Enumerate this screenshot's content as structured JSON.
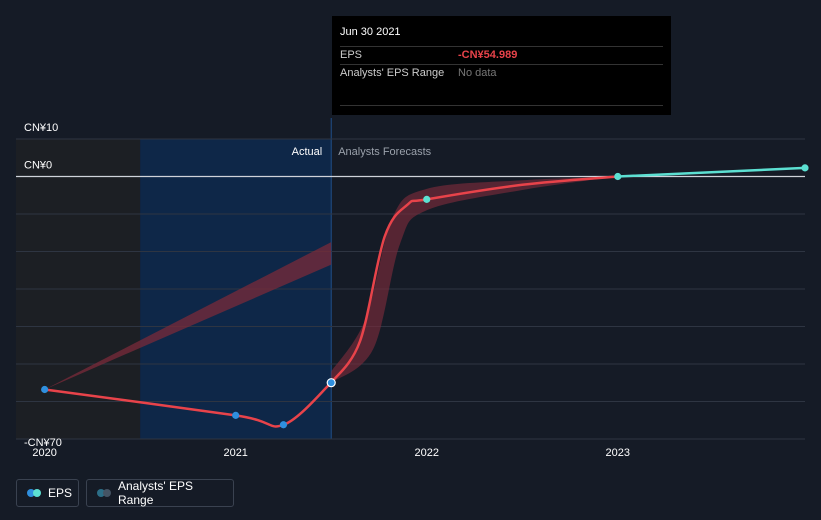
{
  "chart_data": {
    "type": "line",
    "title": "",
    "ylabel": "",
    "xlabel": "",
    "ylim": [
      -70,
      10
    ],
    "y_ticks": [
      {
        "value": 10,
        "label": "CN¥10"
      },
      {
        "value": 0,
        "label": "CN¥0"
      },
      {
        "value": -70,
        "label": "-CN¥70"
      }
    ],
    "x_range": [
      2019.85,
      2023.98
    ],
    "x_ticks": [
      {
        "value": 2020,
        "label": "2020"
      },
      {
        "value": 2021,
        "label": "2021"
      },
      {
        "value": 2022,
        "label": "2022"
      },
      {
        "value": 2023,
        "label": "2023"
      }
    ],
    "divider_x": 2021.5,
    "past_shade_start": 2020.5,
    "actual_label": "Actual",
    "forecast_label": "Analysts Forecasts",
    "series": [
      {
        "name": "EPS (actual)",
        "color": "#e8434a",
        "points": [
          [
            2020.0,
            -56.8
          ],
          [
            2021.0,
            -63.7
          ],
          [
            2021.25,
            -66.2
          ],
          [
            2021.5,
            -54.989
          ]
        ],
        "markers": [
          [
            2020.0,
            -56.8
          ],
          [
            2021.0,
            -63.7
          ],
          [
            2021.25,
            -66.2
          ],
          [
            2021.5,
            -54.989
          ]
        ]
      },
      {
        "name": "EPS (forecast)",
        "color": "#e8434a",
        "points": [
          [
            2021.5,
            -54.989
          ],
          [
            2021.65,
            -44
          ],
          [
            2021.78,
            -16
          ],
          [
            2021.9,
            -7.5
          ],
          [
            2022.0,
            -6.1
          ],
          [
            2022.5,
            -2.2
          ],
          [
            2023.0,
            0.0
          ]
        ],
        "markers": [
          [
            2022.0,
            -6.1
          ]
        ]
      },
      {
        "name": "EPS (forecast, positive)",
        "color": "#5ce0d2",
        "points": [
          [
            2023.0,
            0.0
          ],
          [
            2023.98,
            2.3
          ]
        ],
        "markers": [
          [
            2023.0,
            0.0
          ],
          [
            2023.98,
            2.3
          ]
        ]
      }
    ],
    "range_band_past": {
      "from": [
        2020.0,
        -56.8
      ],
      "to_low": [
        2021.5,
        -23.5
      ],
      "to_high": [
        2021.5,
        -17.5
      ]
    },
    "range_band_forecast": {
      "upper": [
        [
          2021.5,
          -52
        ],
        [
          2021.68,
          -38
        ],
        [
          2021.82,
          -11
        ],
        [
          2022.0,
          -3.3
        ],
        [
          2022.5,
          -1.0
        ],
        [
          2023.0,
          0.0
        ]
      ],
      "lower": [
        [
          2021.5,
          -55
        ],
        [
          2021.72,
          -46
        ],
        [
          2021.86,
          -18
        ],
        [
          2022.0,
          -9.0
        ],
        [
          2022.5,
          -3.6
        ],
        [
          2023.0,
          0.0
        ]
      ]
    }
  },
  "tooltip": {
    "date": "Jun 30 2021",
    "eps_label": "EPS",
    "eps_value": "-CN¥54.989",
    "range_label": "Analysts' EPS Range",
    "range_value": "No data"
  },
  "legend": {
    "eps_label": "EPS",
    "range_label": "Analysts' EPS Range",
    "eps_colors": [
      "#2f8fde",
      "#5ce0d2"
    ],
    "range_colors": [
      "#2c6e87",
      "#455464"
    ]
  },
  "colors": {
    "background": "#151b26",
    "grid": "#2e3542",
    "zero_line": "#cfd3da",
    "past_shade": "#1c1f24",
    "actual_highlight": "#0e2748",
    "actual_marker": "#2f8fde",
    "forecast_marker": "#5ce0d2",
    "band": "#7a2b3a"
  }
}
